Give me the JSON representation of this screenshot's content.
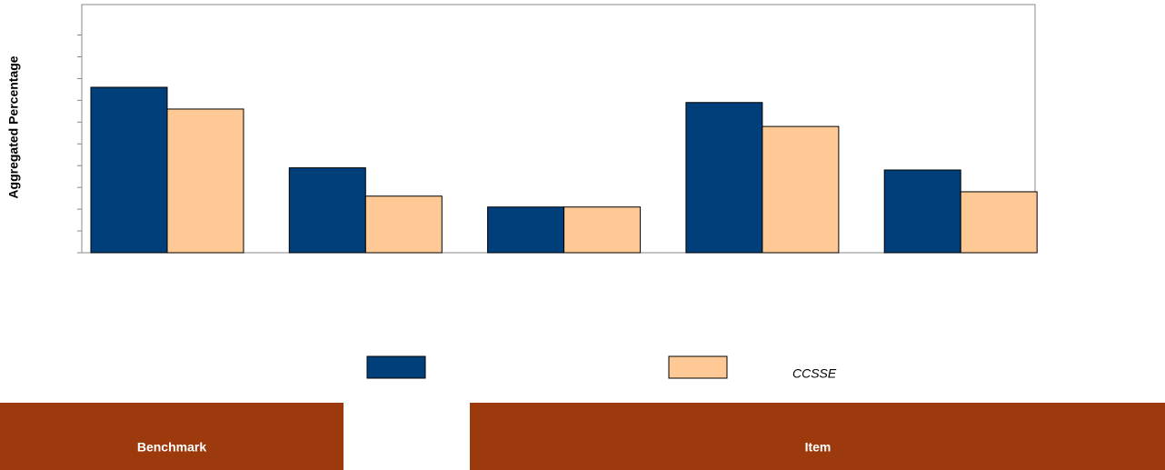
{
  "chart_data": {
    "type": "bar",
    "y_label": "Aggregated Percentage",
    "categories": [
      null,
      null,
      null,
      null,
      null
    ],
    "series": [
      {
        "name": null,
        "color": "#003f7a",
        "values": [
          76,
          39,
          21,
          69,
          38
        ]
      },
      {
        "name": "CCSSE",
        "color": "#fec995",
        "values": [
          66,
          26,
          21,
          58,
          28
        ]
      }
    ],
    "ylim": [
      0,
      114
    ],
    "yticks": [
      0,
      10,
      20,
      30,
      40,
      50,
      60,
      70,
      80,
      90,
      100
    ]
  },
  "panels": [
    "Benchmark",
    "Item"
  ]
}
